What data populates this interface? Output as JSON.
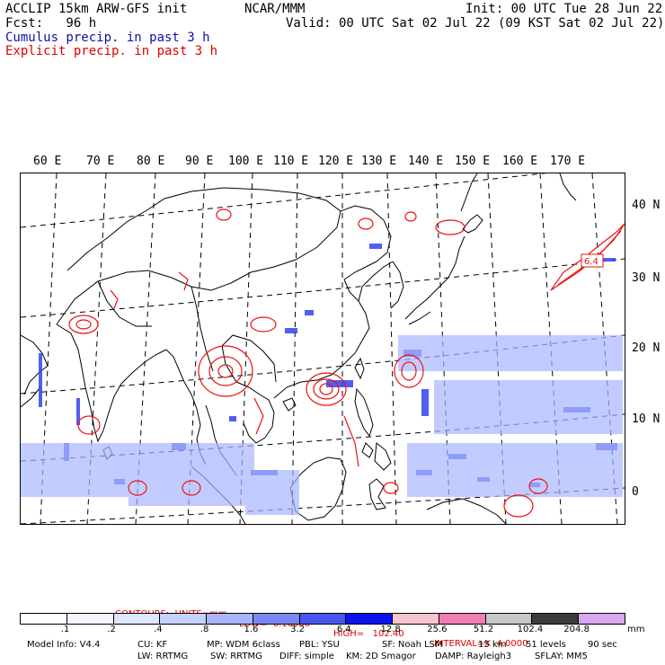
{
  "header": {
    "title_left": "ACCLIP 15km ARW-GFS init",
    "title_center": "NCAR/MMM",
    "init": "Init: 00 UTC Tue 28 Jun 22",
    "fcst": "Fcst:   96 h",
    "valid": "Valid: 00 UTC Sat 02 Jul 22 (09 KST Sat 02 Jul 22)",
    "legend_cumulus": "Cumulus precip. in past 3 h",
    "legend_explicit": "Explicit precip. in past 3 h"
  },
  "map": {
    "lon_labels": [
      "60 E",
      "70 E",
      "80 E",
      "90 E",
      "100 E",
      "110 E",
      "120 E",
      "130 E",
      "140 E",
      "150 E",
      "160 E",
      "170 E"
    ],
    "lat_labels": [
      "40 N",
      "30 N",
      "20 N",
      "10 N",
      "0"
    ],
    "max_label": "6.4",
    "colors": {
      "coast": "#000000",
      "cumulus": "#3344ee",
      "explicit": "#ee1111",
      "grid": "#000000"
    }
  },
  "contours": {
    "units": "CONTOURS:  UNITS=mm",
    "low": "LOW=  0.10000",
    "high": "HIGH=   102.40",
    "interval": "INTERVAL=X  4.0000"
  },
  "colorbar": {
    "labels": [
      ".1",
      ".2",
      ".4",
      ".8",
      "1.6",
      "3.2",
      "6.4",
      "12.8",
      "25.6",
      "51.2",
      "102.4",
      "204.8"
    ],
    "units": "mm",
    "colors": [
      "#ffffff",
      "#f2f4ff",
      "#dfe6ff",
      "#c6d2ff",
      "#a9b6ff",
      "#7c87f5",
      "#4a55f0",
      "#0a14ec",
      "#f5c6cf",
      "#f07fb3",
      "#c8c8c8",
      "#3c3c3c",
      "#d8a8f0"
    ]
  },
  "footer": {
    "model_info": "Model Info: V4.4",
    "cu": "CU: KF",
    "mp": "MP: WDM 6class",
    "pbl": "PBL: YSU",
    "sf": "SF: Noah LSM",
    "res": "15 km",
    "levels": "51 levels",
    "dt": "90 sec",
    "lw": "LW: RRTMG",
    "sw": "SW: RRTMG",
    "diff": "DIFF: simple",
    "km": "KM: 2D Smagor",
    "damp": "DAMP: Rayleigh3",
    "sflay": "SFLAY: MM5"
  }
}
